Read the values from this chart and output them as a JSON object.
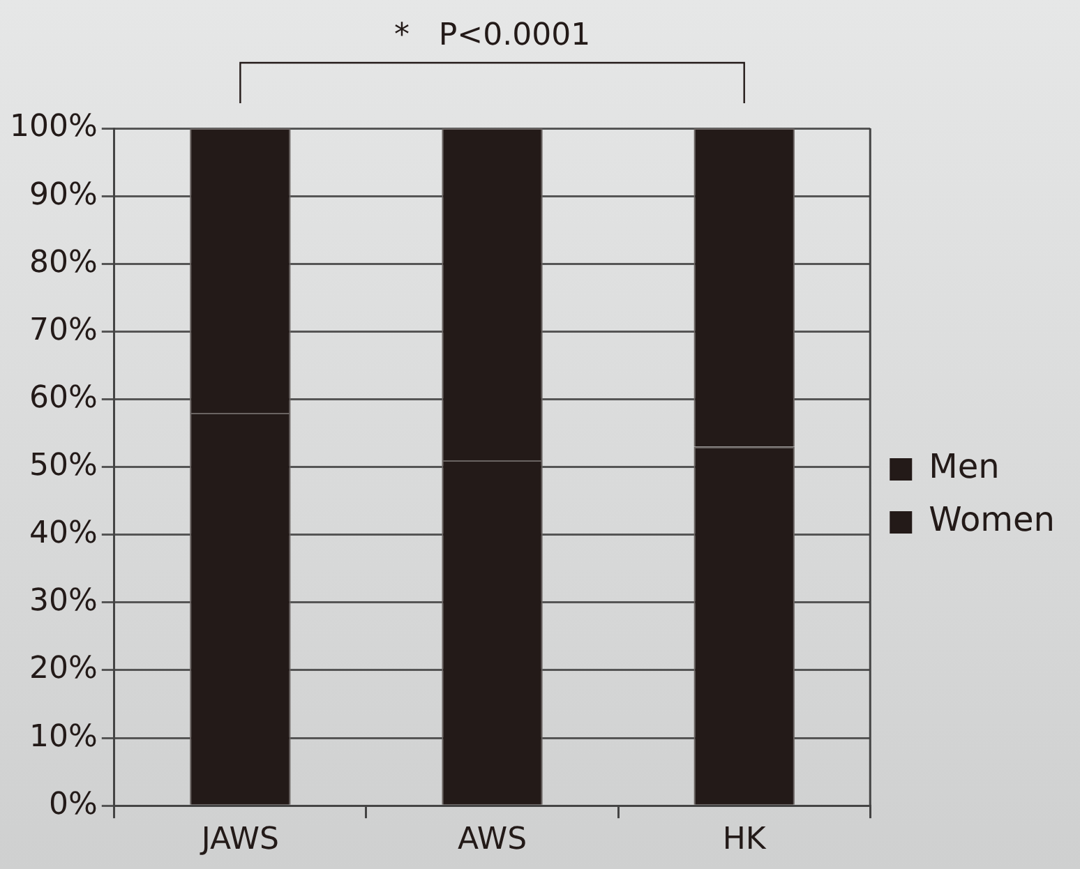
{
  "chart_data": {
    "type": "bar",
    "stacked": true,
    "categories": [
      "JAWS",
      "AWS",
      "HK"
    ],
    "series": [
      {
        "name": "Women",
        "color": "#231a18",
        "values": [
          58,
          51,
          53
        ]
      },
      {
        "name": "Men",
        "color": "#231a18",
        "values": [
          42,
          49,
          47
        ]
      }
    ],
    "ylim": [
      0,
      100
    ],
    "yticks": [
      {
        "value": 0,
        "label": "0%"
      },
      {
        "value": 10,
        "label": "10%"
      },
      {
        "value": 20,
        "label": "20%"
      },
      {
        "value": 30,
        "label": "30%"
      },
      {
        "value": 40,
        "label": "40%"
      },
      {
        "value": 50,
        "label": "50%"
      },
      {
        "value": 60,
        "label": "60%"
      },
      {
        "value": 70,
        "label": "70%"
      },
      {
        "value": 80,
        "label": "80%"
      },
      {
        "value": 90,
        "label": "90%"
      },
      {
        "value": 100,
        "label": "100%"
      }
    ],
    "grid": "y",
    "legend": "right",
    "annotations": [
      "*   P<0.0001"
    ]
  }
}
